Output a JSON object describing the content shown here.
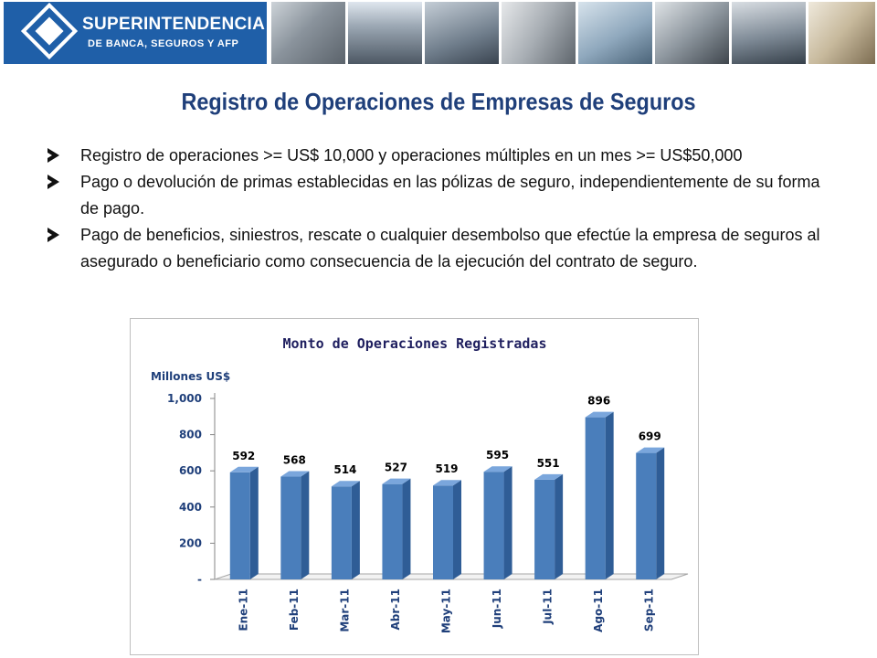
{
  "header": {
    "logo_title": "SUPERINTENDENCIA",
    "logo_subtitle": "DE BANCA, SEGUROS Y AFP"
  },
  "page": {
    "title": "Registro de Operaciones de Empresas de Seguros"
  },
  "bullets": [
    "Registro de operaciones  >= US$ 10,000  y operaciones múltiples en un mes >= US$50,000",
    "Pago o devolución de primas establecidas en las pólizas de seguro, independientemente de su forma de pago.",
    "Pago de beneficios, siniestros, rescate o cualquier desembolso que efectúe la empresa de seguros al asegurado o beneficiario como consecuencia de la ejecución del contrato de seguro."
  ],
  "chart_data": {
    "type": "bar",
    "title": "Monto de Operaciones Registradas",
    "ylabel": "Millones US$",
    "xlabel": "",
    "categories": [
      "Ene-11",
      "Feb-11",
      "Mar-11",
      "Abr-11",
      "May-11",
      "Jun-11",
      "Jul-11",
      "Ago-11",
      "Sep-11"
    ],
    "values": [
      592,
      568,
      514,
      527,
      519,
      595,
      551,
      896,
      699
    ],
    "data_labels": [
      "592",
      "568",
      "514",
      "527",
      "519",
      "595",
      "551",
      "896",
      "699"
    ],
    "ylim": [
      0,
      1000
    ],
    "yticks": [
      0,
      200,
      400,
      600,
      800,
      1000
    ],
    "ytick_labels": [
      "-",
      "200",
      "400",
      "600",
      "800",
      "1,000"
    ],
    "grid": false,
    "legend": "none",
    "bar_color": "#4a7ebb",
    "title_color": "#1f1f5f"
  }
}
